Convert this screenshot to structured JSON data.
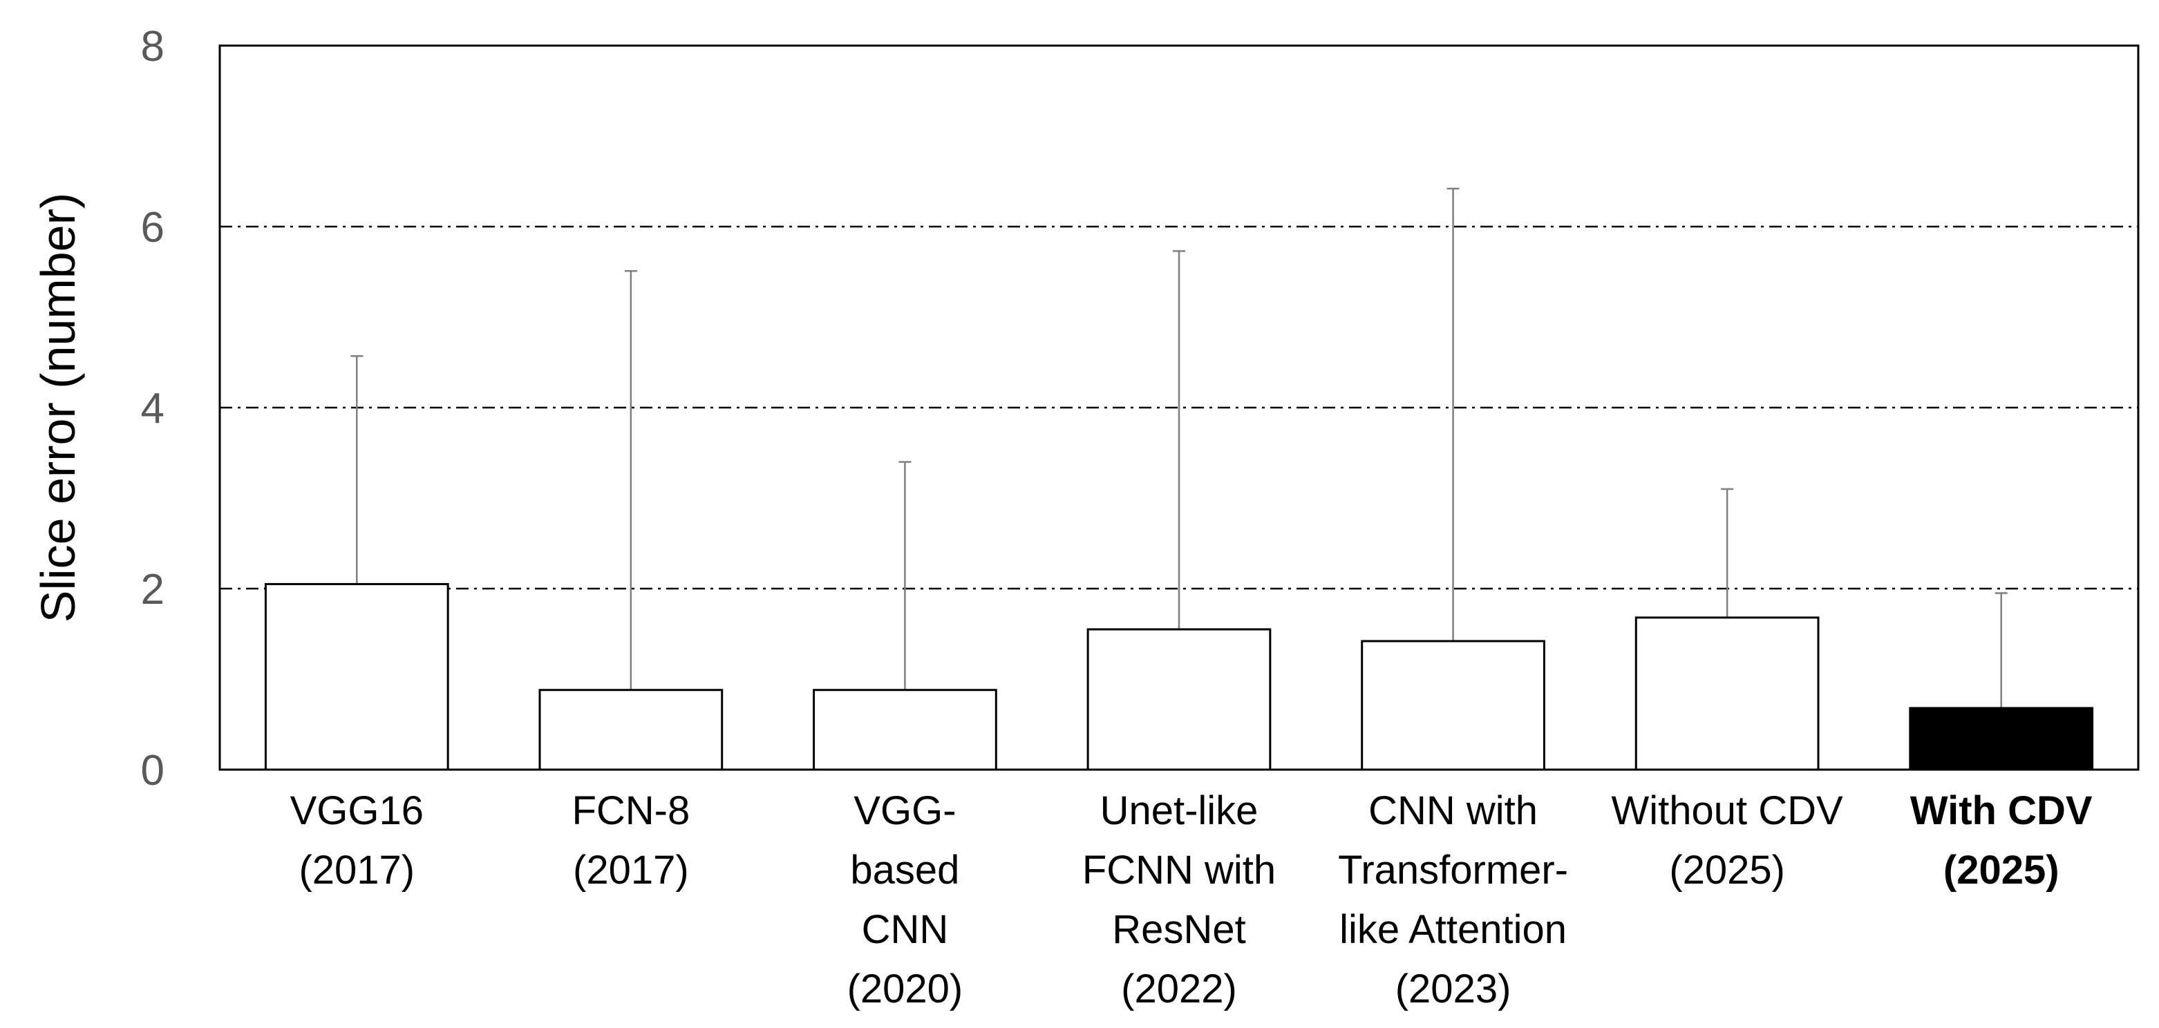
{
  "chart_data": {
    "type": "bar",
    "title": "",
    "xlabel": "",
    "ylabel": "Slice error (number)",
    "ylim": [
      0,
      8
    ],
    "yticks": [
      0,
      2,
      4,
      6,
      8
    ],
    "grid": "horizontal dash-dot at 2, 4, 6",
    "legend": "none",
    "categories": [
      {
        "lines": [
          "VGG16",
          "(2017)"
        ],
        "bold": false
      },
      {
        "lines": [
          "FCN-8",
          "(2017)"
        ],
        "bold": false
      },
      {
        "lines": [
          "VGG-",
          "based",
          "CNN",
          "(2020)"
        ],
        "bold": false
      },
      {
        "lines": [
          "Unet-like",
          "FCNN with",
          "ResNet",
          "(2022)"
        ],
        "bold": false
      },
      {
        "lines": [
          "CNN with",
          "Transformer-",
          "like Attention",
          "(2023)"
        ],
        "bold": false
      },
      {
        "lines": [
          "Without CDV",
          "(2025)"
        ],
        "bold": false
      },
      {
        "lines": [
          "With CDV",
          "(2025)"
        ],
        "bold": true
      }
    ],
    "values": [
      2.05,
      0.88,
      0.88,
      1.55,
      1.42,
      1.68,
      0.68
    ],
    "error_upper": [
      2.52,
      4.63,
      2.52,
      4.18,
      5.0,
      1.42,
      1.27
    ],
    "colors": [
      "#ffffff",
      "#ffffff",
      "#ffffff",
      "#ffffff",
      "#ffffff",
      "#ffffff",
      "#000000"
    ],
    "edge_color": "#000000",
    "error_color": "#7f7f7f"
  }
}
